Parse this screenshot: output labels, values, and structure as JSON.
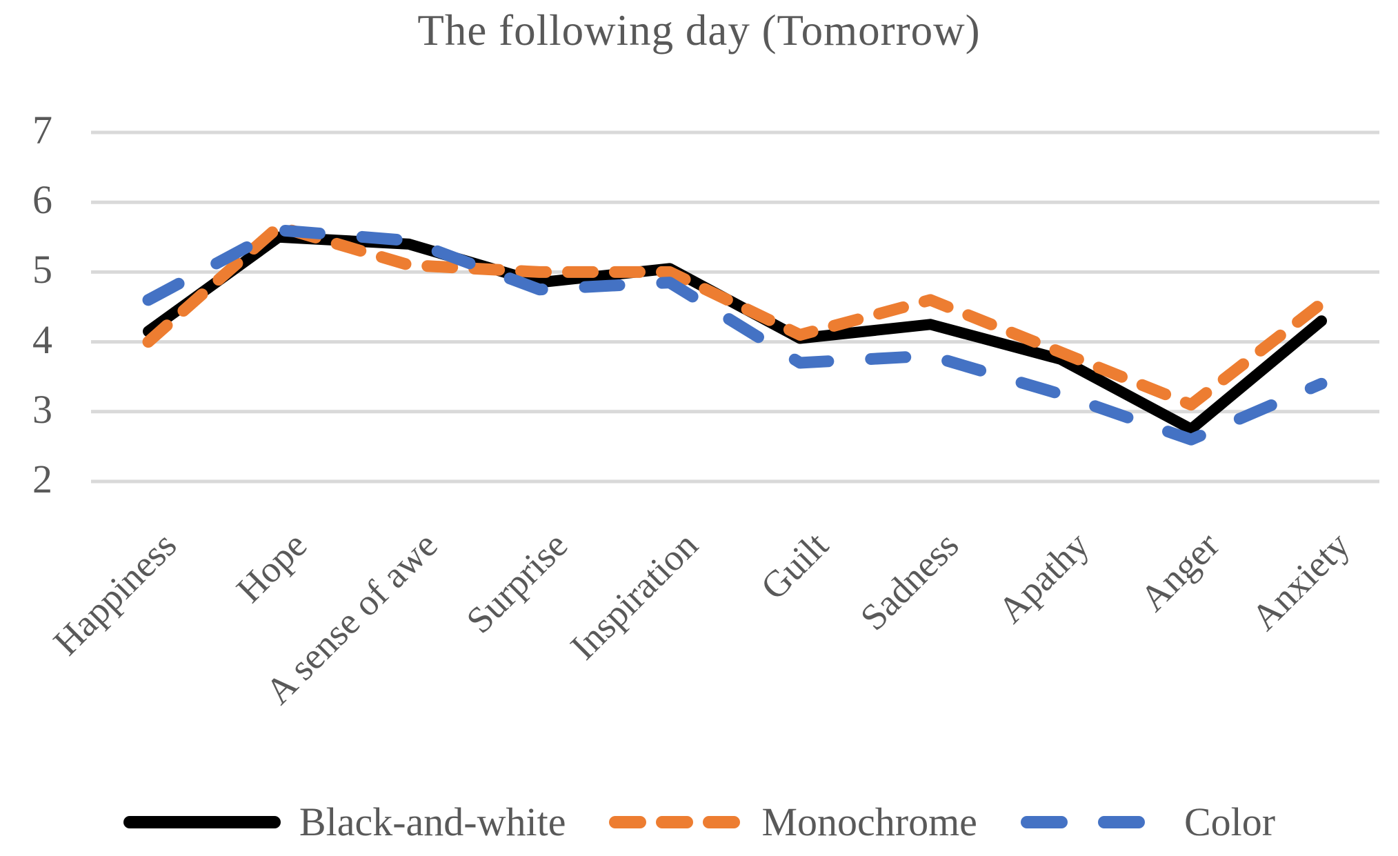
{
  "title": "The following day (Tomorrow)",
  "colors": {
    "background": "#ffffff",
    "text": "#595959",
    "gridline": "#d9d9d9",
    "series_black": "#000000",
    "series_orange": "#ed7d31",
    "series_blue": "#4472c4"
  },
  "chart_data": {
    "type": "line",
    "title": "The following day (Tomorrow)",
    "categories": [
      "Happiness",
      "Hope",
      "A sense of awe",
      "Surprise",
      "Inspiration",
      "Guilt",
      "Sadness",
      "Apathy",
      "Anger",
      "Anxiety"
    ],
    "series": [
      {
        "name": "Black-and-white",
        "color": "#000000",
        "line_style": "solid",
        "values": [
          4.15,
          5.5,
          5.4,
          4.85,
          5.05,
          4.05,
          4.25,
          3.75,
          2.75,
          4.3
        ]
      },
      {
        "name": "Monochrome",
        "color": "#ed7d31",
        "line_style": "dashed",
        "values": [
          4.0,
          5.65,
          5.1,
          5.0,
          5.0,
          4.1,
          4.6,
          3.85,
          3.1,
          4.55
        ]
      },
      {
        "name": "Color",
        "color": "#4472c4",
        "line_style": "dashed",
        "values": [
          4.6,
          5.6,
          5.45,
          4.75,
          4.85,
          3.7,
          3.8,
          3.25,
          2.6,
          3.4
        ]
      }
    ],
    "xlabel": "",
    "ylabel": "",
    "ylim": [
      2,
      7
    ],
    "yticks": [
      7,
      6,
      5,
      4,
      3,
      2
    ],
    "grid": "horizontal",
    "legend_position": "bottom"
  }
}
